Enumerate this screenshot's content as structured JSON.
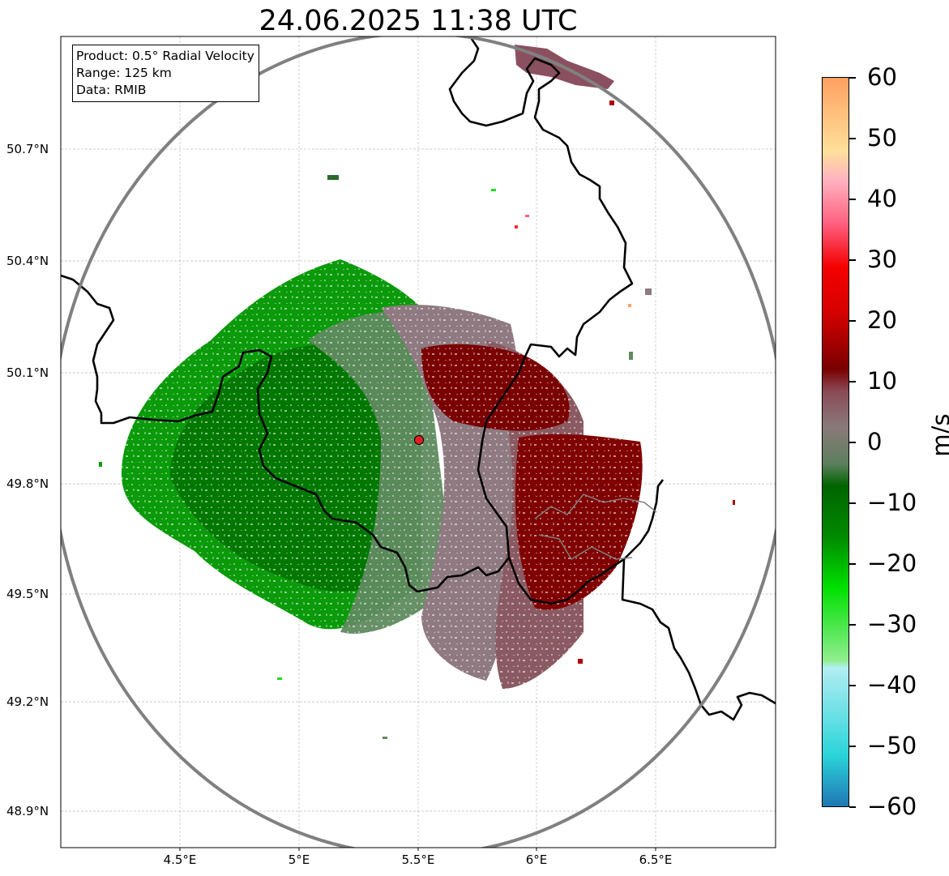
{
  "title": "24.06.2025 11:38 UTC",
  "info": {
    "product": "Product: 0.5° Radial Velocity",
    "range": "Range: 125 km",
    "source": "Data: RMIB"
  },
  "map": {
    "lon_range": [
      4.0,
      7.0
    ],
    "lat_range": [
      48.8,
      51.0
    ],
    "lat_ticks": [
      {
        "value": 50.7,
        "label": "50.7°N"
      },
      {
        "value": 50.4,
        "label": "50.4°N"
      },
      {
        "value": 50.1,
        "label": "50.1°N"
      },
      {
        "value": 49.8,
        "label": "49.8°N"
      },
      {
        "value": 49.5,
        "label": "49.5°N"
      },
      {
        "value": 49.2,
        "label": "49.2°N"
      },
      {
        "value": 48.9,
        "label": "48.9°N"
      }
    ],
    "lon_ticks": [
      {
        "value": 4.5,
        "label": "4.5°E"
      },
      {
        "value": 5.0,
        "label": "5°E"
      },
      {
        "value": 5.5,
        "label": "5.5°E"
      },
      {
        "value": 6.0,
        "label": "6°E"
      },
      {
        "value": 6.5,
        "label": "6.5°E"
      }
    ],
    "radar_site": {
      "lon": 5.505,
      "lat": 49.915
    },
    "range_ring_km": 125
  },
  "colorbar": {
    "unit": "m/s",
    "min": -60,
    "max": 60,
    "ticks": [
      {
        "value": 60,
        "label": "60"
      },
      {
        "value": 50,
        "label": "50"
      },
      {
        "value": 40,
        "label": "40"
      },
      {
        "value": 30,
        "label": "30"
      },
      {
        "value": 20,
        "label": "20"
      },
      {
        "value": 10,
        "label": "10"
      },
      {
        "value": 0,
        "label": "0"
      },
      {
        "value": -10,
        "label": "−10"
      },
      {
        "value": -20,
        "label": "−20"
      },
      {
        "value": -30,
        "label": "−30"
      },
      {
        "value": -40,
        "label": "−40"
      },
      {
        "value": -50,
        "label": "−50"
      },
      {
        "value": -60,
        "label": "−60"
      }
    ],
    "colors": {
      "neg_far": "#1f77b4",
      "neg_cyan": "#2ad4d9",
      "neg_light": "#b2eef2",
      "neg_mint": "#90ee90",
      "neg_bright": "#00e000",
      "neg_green": "#008a00",
      "neg_dark": "#006400",
      "near_zero_green": "#5c7f5c",
      "near_zero_gray": "#8a7a7a",
      "near_zero_mauve": "#8a4a55",
      "pos_dark": "#7a0000",
      "pos_red": "#d80000",
      "pos_bright": "#f40000",
      "pos_pink": "#ff6080",
      "pos_light_pink": "#ffb3c0",
      "pos_yellow": "#ffe09a",
      "pos_orange": "#ffa060"
    }
  }
}
